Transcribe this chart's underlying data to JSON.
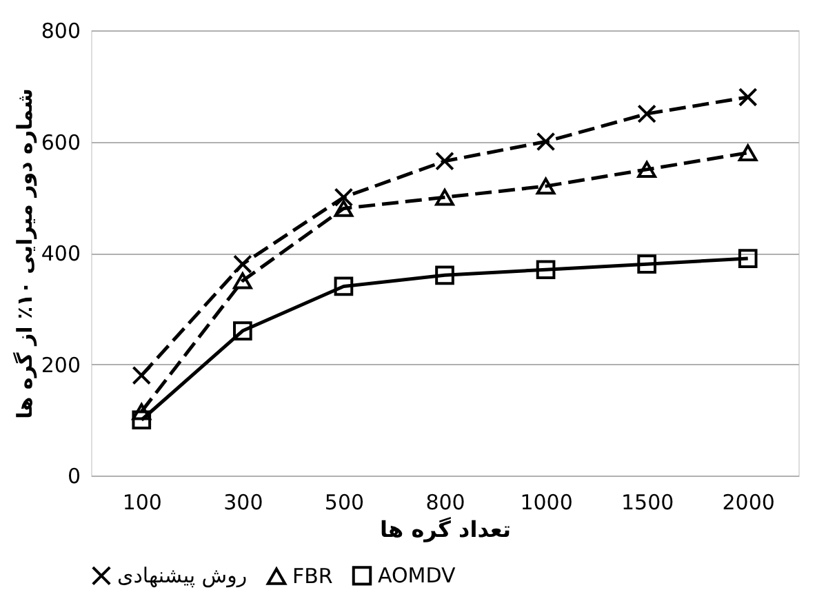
{
  "chart_data": {
    "type": "line",
    "xlabel": "تعداد گره ها",
    "ylabel": "شماره دور میرایی ۱۰٪ از گره ها",
    "categories": [
      "100",
      "300",
      "500",
      "800",
      "1000",
      "1500",
      "2000"
    ],
    "series": [
      {
        "name": "روش پیشنهادی",
        "color": "#000000",
        "marker": "cross",
        "line_style": "dashed",
        "values": [
          180,
          380,
          500,
          565,
          600,
          650,
          680
        ]
      },
      {
        "name": "FBR",
        "color": "#000000",
        "marker": "triangle",
        "line_style": "dashed",
        "values": [
          115,
          350,
          480,
          500,
          520,
          550,
          580
        ]
      },
      {
        "name": "AOMDV",
        "color": "#000000",
        "marker": "square",
        "line_style": "solid",
        "values": [
          100,
          260,
          340,
          360,
          370,
          380,
          390
        ]
      }
    ],
    "ylim": [
      0,
      800
    ],
    "yticks": [
      0,
      200,
      400,
      600,
      800
    ],
    "grid": "y",
    "legend": "bottom"
  }
}
